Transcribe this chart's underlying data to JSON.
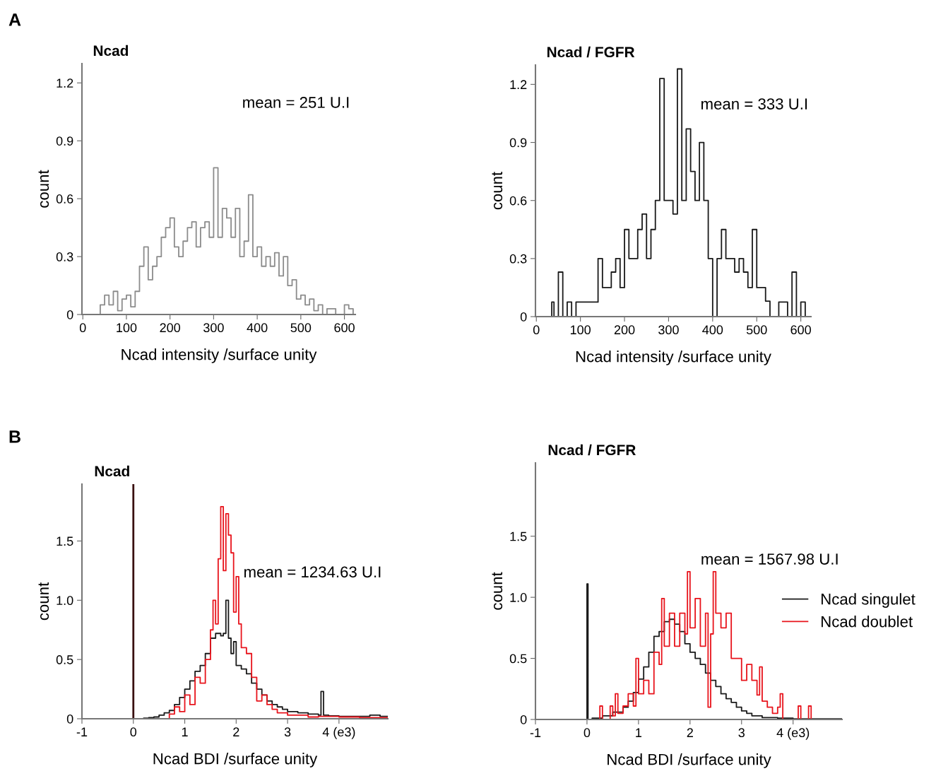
{
  "chart_data": [
    {
      "type": "step",
      "title": "Ncad",
      "xlabel": "Ncad intensity /surface unity",
      "ylabel": "count",
      "annotations": [
        "A",
        "mean = 251 U.I"
      ],
      "xlim": [
        -2,
        625
      ],
      "ylim": [
        0,
        1.3
      ],
      "xticks": [
        0,
        100,
        200,
        300,
        400,
        500,
        600
      ],
      "yticks": [
        0,
        0.3,
        0.6,
        0.9,
        1.2
      ],
      "grid": false,
      "legend": false,
      "series": [
        {
          "color": "#8c8c8c",
          "x": [
            0,
            40,
            50,
            60,
            70,
            80,
            90,
            100,
            110,
            120,
            130,
            140,
            150,
            160,
            170,
            180,
            190,
            200,
            210,
            220,
            230,
            240,
            250,
            260,
            270,
            280,
            290,
            300,
            310,
            320,
            330,
            340,
            350,
            360,
            370,
            380,
            390,
            400,
            410,
            420,
            430,
            440,
            450,
            460,
            470,
            480,
            490,
            500,
            510,
            520,
            530,
            540,
            550,
            560,
            570,
            580,
            590,
            600,
            610,
            620
          ],
          "values": [
            0,
            0.05,
            0.1,
            0.05,
            0.12,
            0.02,
            0.08,
            0.1,
            0.04,
            0.12,
            0.25,
            0.35,
            0.18,
            0.25,
            0.3,
            0.4,
            0.45,
            0.5,
            0.35,
            0.3,
            0.38,
            0.45,
            0.48,
            0.35,
            0.45,
            0.48,
            0.4,
            0.76,
            0.4,
            0.55,
            0.5,
            0.4,
            0.55,
            0.3,
            0.38,
            0.62,
            0.3,
            0.35,
            0.25,
            0.3,
            0.25,
            0.32,
            0.2,
            0.3,
            0.15,
            0.18,
            0.08,
            0.1,
            0.05,
            0.08,
            0.02,
            0.05,
            0,
            0.03,
            0.03,
            0,
            0,
            0.05,
            0.03,
            0
          ]
        }
      ]
    },
    {
      "type": "step",
      "title": "Ncad / FGFR",
      "xlabel": "Ncad intensity /surface unity",
      "ylabel": "count",
      "annotations": [
        "mean = 333 U.I"
      ],
      "xlim": [
        -2,
        623
      ],
      "ylim": [
        0,
        1.3
      ],
      "xticks": [
        0,
        100,
        200,
        300,
        400,
        500,
        600
      ],
      "yticks": [
        0,
        0.3,
        0.6,
        0.9,
        1.2
      ],
      "grid": false,
      "legend": false,
      "series": [
        {
          "color": "#1a1a1a",
          "x": [
            0,
            35,
            40,
            50,
            60,
            70,
            80,
            90,
            100,
            110,
            120,
            130,
            140,
            150,
            160,
            170,
            180,
            190,
            200,
            210,
            220,
            230,
            240,
            250,
            260,
            270,
            280,
            290,
            300,
            310,
            320,
            330,
            340,
            350,
            360,
            370,
            380,
            390,
            400,
            410,
            420,
            430,
            440,
            450,
            460,
            470,
            480,
            490,
            500,
            510,
            520,
            530,
            540,
            550,
            560,
            570,
            580,
            590,
            600,
            610,
            620
          ],
          "values": [
            0,
            0.075,
            0,
            0.23,
            0,
            0.075,
            0,
            0.075,
            0.075,
            0.075,
            0.075,
            0.075,
            0.3,
            0.15,
            0.15,
            0.23,
            0.3,
            0.15,
            0.45,
            0.3,
            0.3,
            0.45,
            0.53,
            0.3,
            0.45,
            0.6,
            1.23,
            0.6,
            0.6,
            0.53,
            1.28,
            0.6,
            0.97,
            0.75,
            0.6,
            0.9,
            0.6,
            0.3,
            0,
            0.3,
            0.45,
            0.3,
            0.3,
            0.23,
            0.3,
            0.23,
            0.15,
            0.45,
            0.15,
            0.15,
            0.08,
            0,
            0,
            0.075,
            0.075,
            0,
            0.23,
            0,
            0.075,
            0,
            0
          ]
        }
      ]
    },
    {
      "type": "step",
      "title": "Ncad",
      "xlabel": "Ncad BDI /surface unity",
      "ylabel": "count",
      "annotations": [
        "B",
        "mean = 1234.63 U.I"
      ],
      "xlim": [
        -1,
        4.95
      ],
      "ylim": [
        0,
        1.98
      ],
      "xticks": [
        -1,
        0,
        1,
        2,
        3,
        {
          "value": 4,
          "label": "4 (e3)"
        }
      ],
      "yticks": [
        0,
        0.5,
        {
          "value": 1,
          "label": "1.0"
        },
        1.5
      ],
      "grid": false,
      "legend": false,
      "ref_lines": [
        {
          "axis": "x",
          "value": 0,
          "label": null,
          "color": "#3a1010"
        }
      ],
      "series": [
        {
          "color": "#1a1a1a",
          "x": [
            -1,
            0.2,
            0.3,
            0.4,
            0.5,
            0.6,
            0.7,
            0.8,
            0.9,
            1.0,
            1.1,
            1.2,
            1.3,
            1.4,
            1.5,
            1.6,
            1.7,
            1.75,
            1.8,
            1.85,
            1.9,
            1.95,
            2.0,
            2.1,
            2.2,
            2.3,
            2.4,
            2.5,
            2.6,
            2.7,
            2.8,
            2.9,
            3.0,
            3.2,
            3.4,
            3.6,
            3.65,
            3.7,
            3.8,
            4.0,
            4.3,
            4.6,
            4.8,
            4.95
          ],
          "values": [
            0,
            0.005,
            0.01,
            0.015,
            0.03,
            0.05,
            0.07,
            0.12,
            0.18,
            0.25,
            0.32,
            0.4,
            0.45,
            0.55,
            0.68,
            0.72,
            0.7,
            0.72,
            1.0,
            0.68,
            0.55,
            0.65,
            0.45,
            0.42,
            0.38,
            0.3,
            0.25,
            0.2,
            0.15,
            0.12,
            0.1,
            0.08,
            0.06,
            0.05,
            0.04,
            0.03,
            0.23,
            0.03,
            0.025,
            0.02,
            0.02,
            0.03,
            0.02,
            0.02
          ]
        },
        {
          "color": "#e8141c",
          "x": [
            0.6,
            0.7,
            0.8,
            0.9,
            1.0,
            1.1,
            1.2,
            1.3,
            1.4,
            1.5,
            1.55,
            1.6,
            1.65,
            1.7,
            1.75,
            1.8,
            1.85,
            1.9,
            1.95,
            2.0,
            2.05,
            2.1,
            2.2,
            2.3,
            2.4,
            2.5,
            2.6,
            2.7,
            2.8,
            2.9,
            3.0,
            3.2,
            3.4,
            3.6,
            4.0,
            4.4,
            4.8,
            4.95
          ],
          "values": [
            0,
            0.04,
            0.1,
            0.06,
            0.2,
            0.12,
            0.35,
            0.3,
            0.5,
            0.75,
            1.0,
            0.8,
            1.35,
            1.79,
            1.25,
            1.73,
            1.55,
            1.4,
            0.9,
            1.2,
            0.8,
            0.6,
            0.55,
            0.35,
            0.15,
            0.2,
            0.12,
            0.08,
            0.05,
            0.05,
            0.03,
            0.03,
            0.015,
            0.02,
            0.015,
            0.01,
            0.01,
            0.01
          ]
        }
      ]
    },
    {
      "type": "step",
      "title": "Ncad / FGFR",
      "xlabel": "Ncad BDI /surface unity",
      "ylabel": "count",
      "annotations": [
        "mean = 1567.98 U.I"
      ],
      "xlim": [
        -1,
        4.95
      ],
      "ylim": [
        0,
        2.1
      ],
      "xticks": [
        -1,
        0,
        1,
        2,
        3,
        {
          "value": 4,
          "label": "4 (e3)"
        }
      ],
      "yticks": [
        0,
        0.5,
        {
          "value": 1,
          "label": "1.0"
        },
        1.5
      ],
      "grid": false,
      "legend": "right",
      "series": [
        {
          "name": "Ncad singulet",
          "color": "#1a1a1a",
          "x": [
            -1,
            0,
            0.02,
            0.1,
            0.3,
            0.5,
            0.7,
            0.8,
            0.9,
            1.0,
            1.1,
            1.2,
            1.3,
            1.4,
            1.5,
            1.6,
            1.7,
            1.8,
            1.9,
            2.0,
            2.1,
            2.2,
            2.3,
            2.4,
            2.5,
            2.6,
            2.7,
            2.8,
            2.9,
            3.0,
            3.1,
            3.2,
            3.4,
            3.7,
            4.0,
            4.5,
            4.95
          ],
          "values": [
            0,
            1.11,
            0,
            0.01,
            0.03,
            0.06,
            0.1,
            0.15,
            0.22,
            0.33,
            0.43,
            0.55,
            0.68,
            0.72,
            0.8,
            0.82,
            0.78,
            0.72,
            0.62,
            0.55,
            0.5,
            0.45,
            0.38,
            0.32,
            0.27,
            0.21,
            0.17,
            0.14,
            0.1,
            0.07,
            0.05,
            0.03,
            0.015,
            0.01,
            0.005,
            0.005,
            0.005
          ]
        },
        {
          "name": "Ncad doublet",
          "color": "#e8141c",
          "x": [
            0.2,
            0.25,
            0.3,
            0.45,
            0.5,
            0.55,
            0.6,
            0.7,
            0.8,
            0.9,
            0.95,
            1.0,
            1.1,
            1.2,
            1.3,
            1.4,
            1.45,
            1.5,
            1.6,
            1.7,
            1.8,
            1.9,
            1.95,
            2.0,
            2.1,
            2.2,
            2.3,
            2.35,
            2.4,
            2.45,
            2.5,
            2.6,
            2.7,
            2.8,
            2.9,
            3.0,
            3.1,
            3.2,
            3.3,
            3.35,
            3.4,
            3.5,
            3.6,
            3.7,
            3.75,
            3.8,
            4.1,
            4.15,
            4.3,
            4.35
          ],
          "values": [
            0,
            0.11,
            0,
            0.11,
            0.03,
            0.21,
            0.05,
            0.11,
            0.21,
            0.11,
            0.5,
            0.21,
            0.32,
            0.21,
            0.55,
            0.45,
            0.99,
            0.6,
            0.87,
            0.6,
            0.87,
            0.7,
            1.21,
            0.75,
            0.99,
            0.6,
            0.87,
            0.1,
            0.7,
            1.21,
            0.87,
            0.75,
            0.87,
            0.5,
            0.5,
            0.32,
            0.45,
            0.32,
            0.2,
            0.43,
            0.15,
            0.1,
            0.05,
            0.1,
            0.21,
            0,
            0.11,
            0,
            0.11,
            0
          ]
        }
      ]
    }
  ]
}
